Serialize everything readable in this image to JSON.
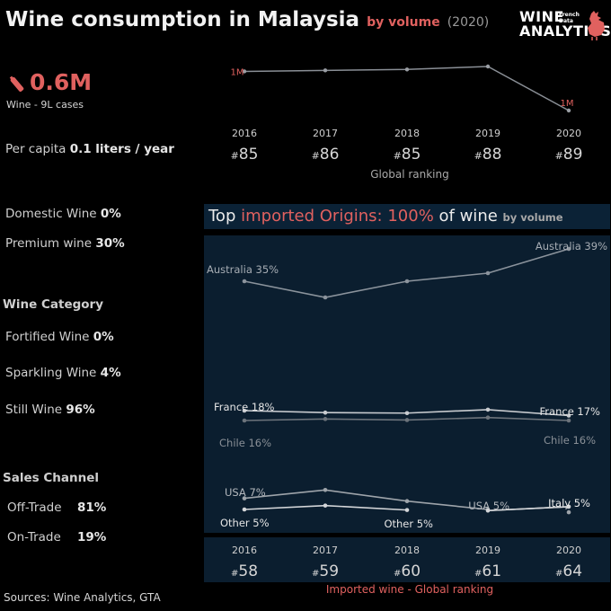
{
  "header": {
    "title": "Wine consumption in Malaysia",
    "sub_red": "by volume",
    "sub_gray": "(2020)"
  },
  "logo": {
    "line1": "WINE",
    "line2": "ANALYTICS",
    "tag1": "French",
    "tag2": "Data"
  },
  "volume": {
    "value": "0.6M",
    "label": "Wine - 9L cases"
  },
  "per_capita": {
    "label": "Per capita",
    "value": "0.1 liters / year"
  },
  "domestic": {
    "label": "Domestic Wine",
    "value": "0%"
  },
  "premium": {
    "label": "Premium wine",
    "value": "30%"
  },
  "category": {
    "title": "Wine Category",
    "items": [
      {
        "label": "Fortified Wine",
        "value": "0%"
      },
      {
        "label": "Sparkling Wine",
        "value": "4%"
      },
      {
        "label": "Still Wine",
        "value": "96%"
      }
    ]
  },
  "channel": {
    "title": "Sales Channel",
    "items": [
      {
        "label": "Off-Trade",
        "value": "81%"
      },
      {
        "label": "On-Trade",
        "value": "19%"
      }
    ]
  },
  "sources": "Sources: Wine Analytics, GTA",
  "imported_title": {
    "a": "Top ",
    "b": "imported Origins: 100%",
    "c": " of wine ",
    "d": "by volume"
  },
  "colors": {
    "accent": "#e0615f",
    "panel": "#0b1e2f",
    "line": "#8a8f96"
  },
  "chart_data": [
    {
      "type": "line",
      "title": "",
      "x": [
        "2016",
        "2017",
        "2018",
        "2019",
        "2020"
      ],
      "series": [
        {
          "values": [
            1.0,
            1.01,
            1.02,
            1.05,
            0.6
          ]
        }
      ],
      "data_labels": {
        "first": "1M",
        "last": "1M"
      },
      "rank_label": "Global ranking",
      "ranks": [
        "85",
        "86",
        "85",
        "88",
        "89"
      ]
    },
    {
      "type": "line",
      "title": "Top imported Origins: 100% of wine by volume",
      "x": [
        "2016",
        "2017",
        "2018",
        "2019",
        "2020"
      ],
      "series": [
        {
          "name": "Australia",
          "values": [
            35,
            33,
            35,
            36,
            39
          ],
          "start_label": "Australia 35%",
          "end_label": "Australia 39%"
        },
        {
          "name": "France",
          "values": [
            18,
            17.6,
            17.5,
            18.2,
            17
          ],
          "start_label": "France 18%",
          "end_label": "France 17%"
        },
        {
          "name": "Chile",
          "values": [
            16,
            16.3,
            16.1,
            16.6,
            16
          ],
          "start_label": "Chile 16%",
          "end_label": "Chile 16%"
        },
        {
          "name": "USA",
          "values": [
            7,
            8.5,
            6.5,
            5,
            null
          ],
          "start_label": "USA 7%",
          "end_label": "USA 5%"
        },
        {
          "name": "Other",
          "values": [
            5,
            5.7,
            4.9,
            null,
            null
          ],
          "start_label": "Other 5%",
          "end_label": "Other 5%"
        },
        {
          "name": "Italy",
          "values": [
            null,
            null,
            null,
            4.8,
            5.5
          ],
          "start_label": "",
          "end_label": "Italy 5%"
        }
      ],
      "rank_label": "Imported wine - Global ranking",
      "ranks": [
        "58",
        "59",
        "60",
        "61",
        "64"
      ]
    }
  ]
}
